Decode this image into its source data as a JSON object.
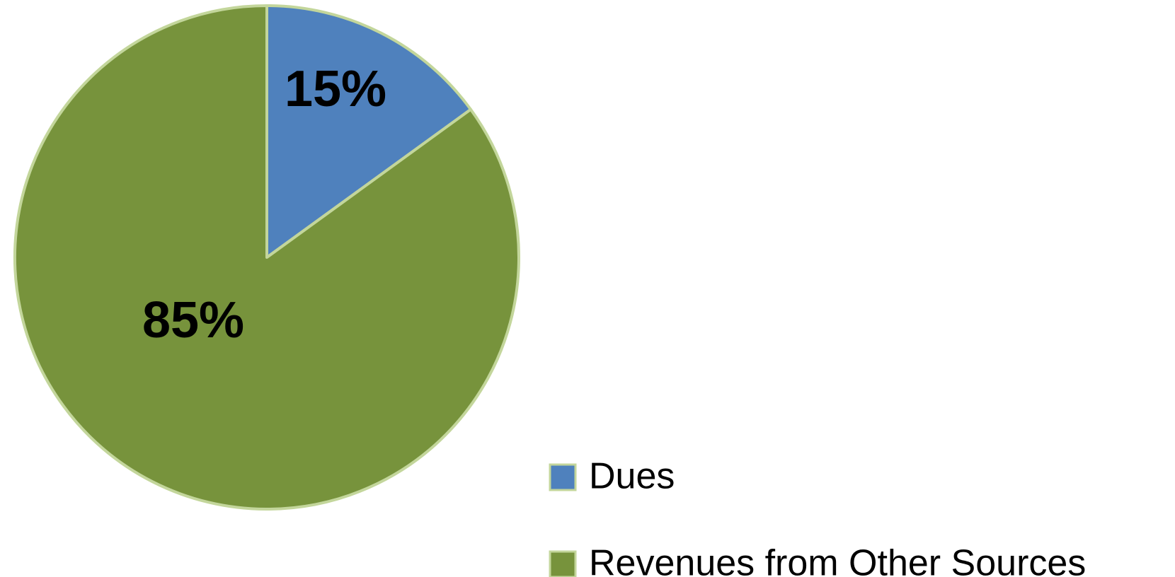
{
  "chart_data": {
    "type": "pie",
    "categories": [
      "Dues",
      "Revenues from Other Sources"
    ],
    "values": [
      15,
      85
    ],
    "value_labels": [
      "15%",
      "85%"
    ],
    "colors": [
      "#4f81bd",
      "#77933c"
    ]
  }
}
